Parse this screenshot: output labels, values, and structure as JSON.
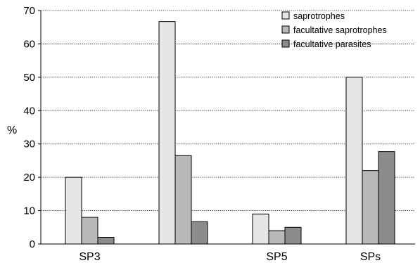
{
  "chart_data": {
    "type": "bar",
    "title": "",
    "xlabel": "",
    "ylabel": "%",
    "ylim": [
      0,
      70
    ],
    "yticks": [
      0,
      10,
      20,
      30,
      40,
      50,
      60,
      70
    ],
    "grid": true,
    "legend_position": "top-right",
    "categories": [
      "SP3",
      "",
      "SP5",
      "SPs"
    ],
    "series": [
      {
        "name": "saprotrophes",
        "color": "#e6e6e6",
        "values": [
          20,
          66.7,
          9,
          50
        ]
      },
      {
        "name": "facultative saprotrophes",
        "color": "#b9b9b9",
        "values": [
          8,
          26.5,
          4,
          22
        ]
      },
      {
        "name": "facultative parasites",
        "color": "#8c8c8c",
        "values": [
          2,
          6.7,
          5,
          27.7
        ]
      }
    ]
  }
}
